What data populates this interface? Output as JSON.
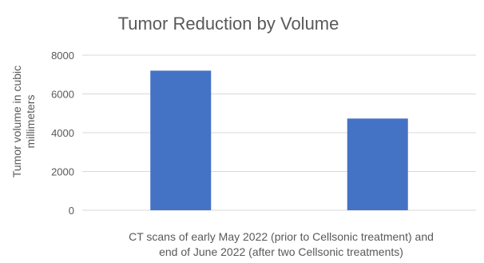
{
  "chart_data": {
    "type": "bar",
    "title": "Tumor Reduction by Volume",
    "ylabel_lines": [
      "Tumor volume in cubic",
      "millimeters"
    ],
    "xlabel_lines": [
      "CT scans of early May 2022 (prior to Cellsonic treatment) and",
      "end of June 2022 (after two Cellsonic treatments)"
    ],
    "categories": [
      "",
      ""
    ],
    "values": [
      7200,
      4730
    ],
    "ylim": [
      0,
      8000
    ],
    "yticks": [
      0,
      2000,
      4000,
      6000,
      8000
    ],
    "grid": true,
    "legend": "none",
    "bar_color": "#4472c4"
  }
}
